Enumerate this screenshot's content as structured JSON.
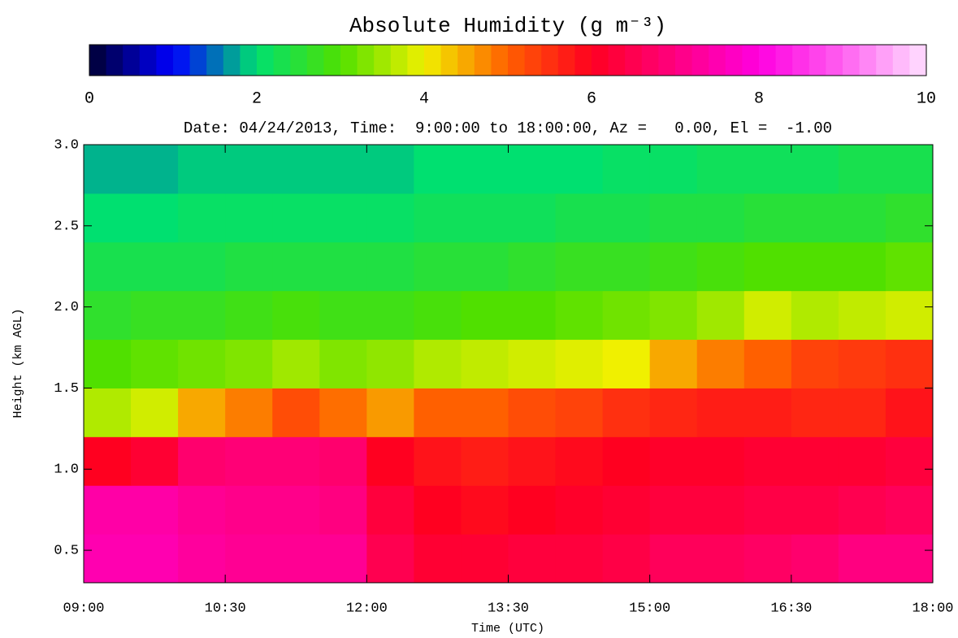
{
  "chart_data": {
    "type": "heatmap",
    "title": "Absolute Humidity (g m⁻³)",
    "subtitle": "Date: 04/24/2013, Time:  9:00:00 to 18:00:00, Az =   0.00, El =  -1.00",
    "x_label": "Time (UTC)",
    "y_label": "Height (km AGL)",
    "xlim": [
      9,
      18
    ],
    "xticks": [
      {
        "value": 9,
        "label": "09:00"
      },
      {
        "value": 10.5,
        "label": "10:30"
      },
      {
        "value": 12,
        "label": "12:00"
      },
      {
        "value": 13.5,
        "label": "13:30"
      },
      {
        "value": 15,
        "label": "15:00"
      },
      {
        "value": 16.5,
        "label": "16:30"
      },
      {
        "value": 18,
        "label": "18:00"
      }
    ],
    "ylim": [
      0.3,
      3.0
    ],
    "yticks": [
      0.5,
      {
        "value": 1,
        "label": "1.0"
      },
      1.5,
      {
        "value": 2,
        "label": "2.0"
      },
      2.5,
      {
        "value": 3,
        "label": "3.0"
      }
    ],
    "x_edges": [
      9,
      9.5,
      10,
      10.5,
      11,
      11.5,
      12,
      12.5,
      13,
      13.5,
      14,
      14.5,
      15,
      15.5,
      16,
      16.5,
      17,
      17.5,
      18
    ],
    "y_edges": [
      0.3,
      0.6,
      0.9,
      1.2,
      1.5,
      1.8,
      2.1,
      2.4,
      2.7,
      3.0
    ],
    "z": [
      [
        7.5,
        7.5,
        7.3,
        7.2,
        7.2,
        7.2,
        6.5,
        6.2,
        6.2,
        6.3,
        6.3,
        6.4,
        6.6,
        6.6,
        6.7,
        6.8,
        7.0,
        7.0
      ],
      [
        7.4,
        7.4,
        7.2,
        7.1,
        7.1,
        7.0,
        6.3,
        6.0,
        5.9,
        6.0,
        6.1,
        6.2,
        6.3,
        6.3,
        6.4,
        6.4,
        6.5,
        6.6
      ],
      [
        6.0,
        6.2,
        6.8,
        6.9,
        6.9,
        6.8,
        6.0,
        5.8,
        5.7,
        5.8,
        5.9,
        6.0,
        6.1,
        6.1,
        6.2,
        6.2,
        6.2,
        6.3
      ],
      [
        3.6,
        3.8,
        4.5,
        4.8,
        5.2,
        4.9,
        4.6,
        5.0,
        5.0,
        5.2,
        5.3,
        5.5,
        5.6,
        5.7,
        5.7,
        5.6,
        5.6,
        5.8
      ],
      [
        3.0,
        3.1,
        3.2,
        3.3,
        3.5,
        3.3,
        3.4,
        3.6,
        3.7,
        3.8,
        3.9,
        4.0,
        4.5,
        4.8,
        5.0,
        5.3,
        5.4,
        5.5
      ],
      [
        2.6,
        2.7,
        2.7,
        2.8,
        2.9,
        2.8,
        2.8,
        2.9,
        3.0,
        3.0,
        3.1,
        3.2,
        3.3,
        3.5,
        3.8,
        3.6,
        3.7,
        3.8
      ],
      [
        2.3,
        2.3,
        2.3,
        2.4,
        2.4,
        2.4,
        2.4,
        2.5,
        2.5,
        2.6,
        2.7,
        2.7,
        2.8,
        2.9,
        3.0,
        3.0,
        3.0,
        3.1
      ],
      [
        2.0,
        2.0,
        2.1,
        2.1,
        2.1,
        2.1,
        2.1,
        2.2,
        2.2,
        2.2,
        2.3,
        2.3,
        2.4,
        2.4,
        2.5,
        2.5,
        2.5,
        2.6
      ],
      [
        1.8,
        1.8,
        1.9,
        1.9,
        1.9,
        1.9,
        1.9,
        2.0,
        2.0,
        2.0,
        2.0,
        2.1,
        2.1,
        2.2,
        2.2,
        2.2,
        2.3,
        2.3
      ]
    ],
    "zlim": [
      0,
      10
    ],
    "colorbar_ticks": [
      0,
      2,
      4,
      6,
      8,
      10
    ],
    "colorscale": [
      "#000030",
      "#0000ff",
      "#00e070",
      "#50e000",
      "#f0f000",
      "#ff6000",
      "#ff0020",
      "#ff0080",
      "#ff00e0",
      "#ff60f0",
      "#ffe0ff"
    ]
  }
}
